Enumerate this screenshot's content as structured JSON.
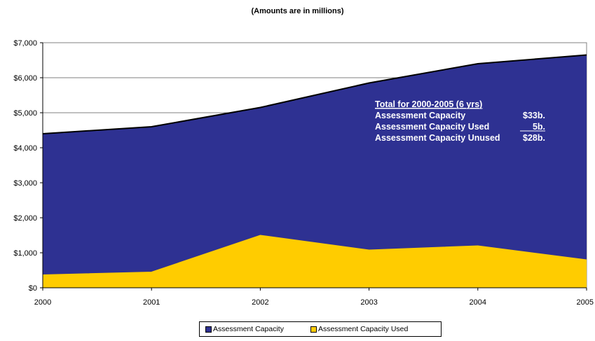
{
  "chart_data": {
    "type": "area",
    "title": "",
    "subtitle": "(Amounts are in millions)",
    "xlabel": "",
    "ylabel": "",
    "categories": [
      "2000",
      "2001",
      "2002",
      "2003",
      "2004",
      "2005"
    ],
    "series": [
      {
        "name": "Assessment Capacity",
        "color": "#2e3192",
        "values": [
          4400,
          4600,
          5150,
          5850,
          6400,
          6650
        ]
      },
      {
        "name": "Assessment Capacity Used",
        "color": "#ffcc00",
        "values": [
          370,
          450,
          1500,
          1080,
          1200,
          800
        ]
      }
    ],
    "ylim": [
      0,
      7000
    ],
    "yticks": [
      {
        "value": 0,
        "label": "$0"
      },
      {
        "value": 1000,
        "label": "$1,000"
      },
      {
        "value": 2000,
        "label": "$2,000"
      },
      {
        "value": 3000,
        "label": "$3,000"
      },
      {
        "value": 4000,
        "label": "$4,000"
      },
      {
        "value": 5000,
        "label": "$5,000"
      },
      {
        "value": 6000,
        "label": "$6,000"
      },
      {
        "value": 7000,
        "label": "$7,000"
      }
    ],
    "grid": true,
    "legend_position": "bottom",
    "annotation": {
      "heading": "Total for 2000-2005 (6 yrs)",
      "rows": [
        {
          "label": "Assessment Capacity",
          "value": "$33b."
        },
        {
          "label": "Assessment Capacity Used",
          "value": "5b."
        },
        {
          "label": "Assessment Capacity Unused",
          "value": "$28b."
        }
      ]
    }
  }
}
